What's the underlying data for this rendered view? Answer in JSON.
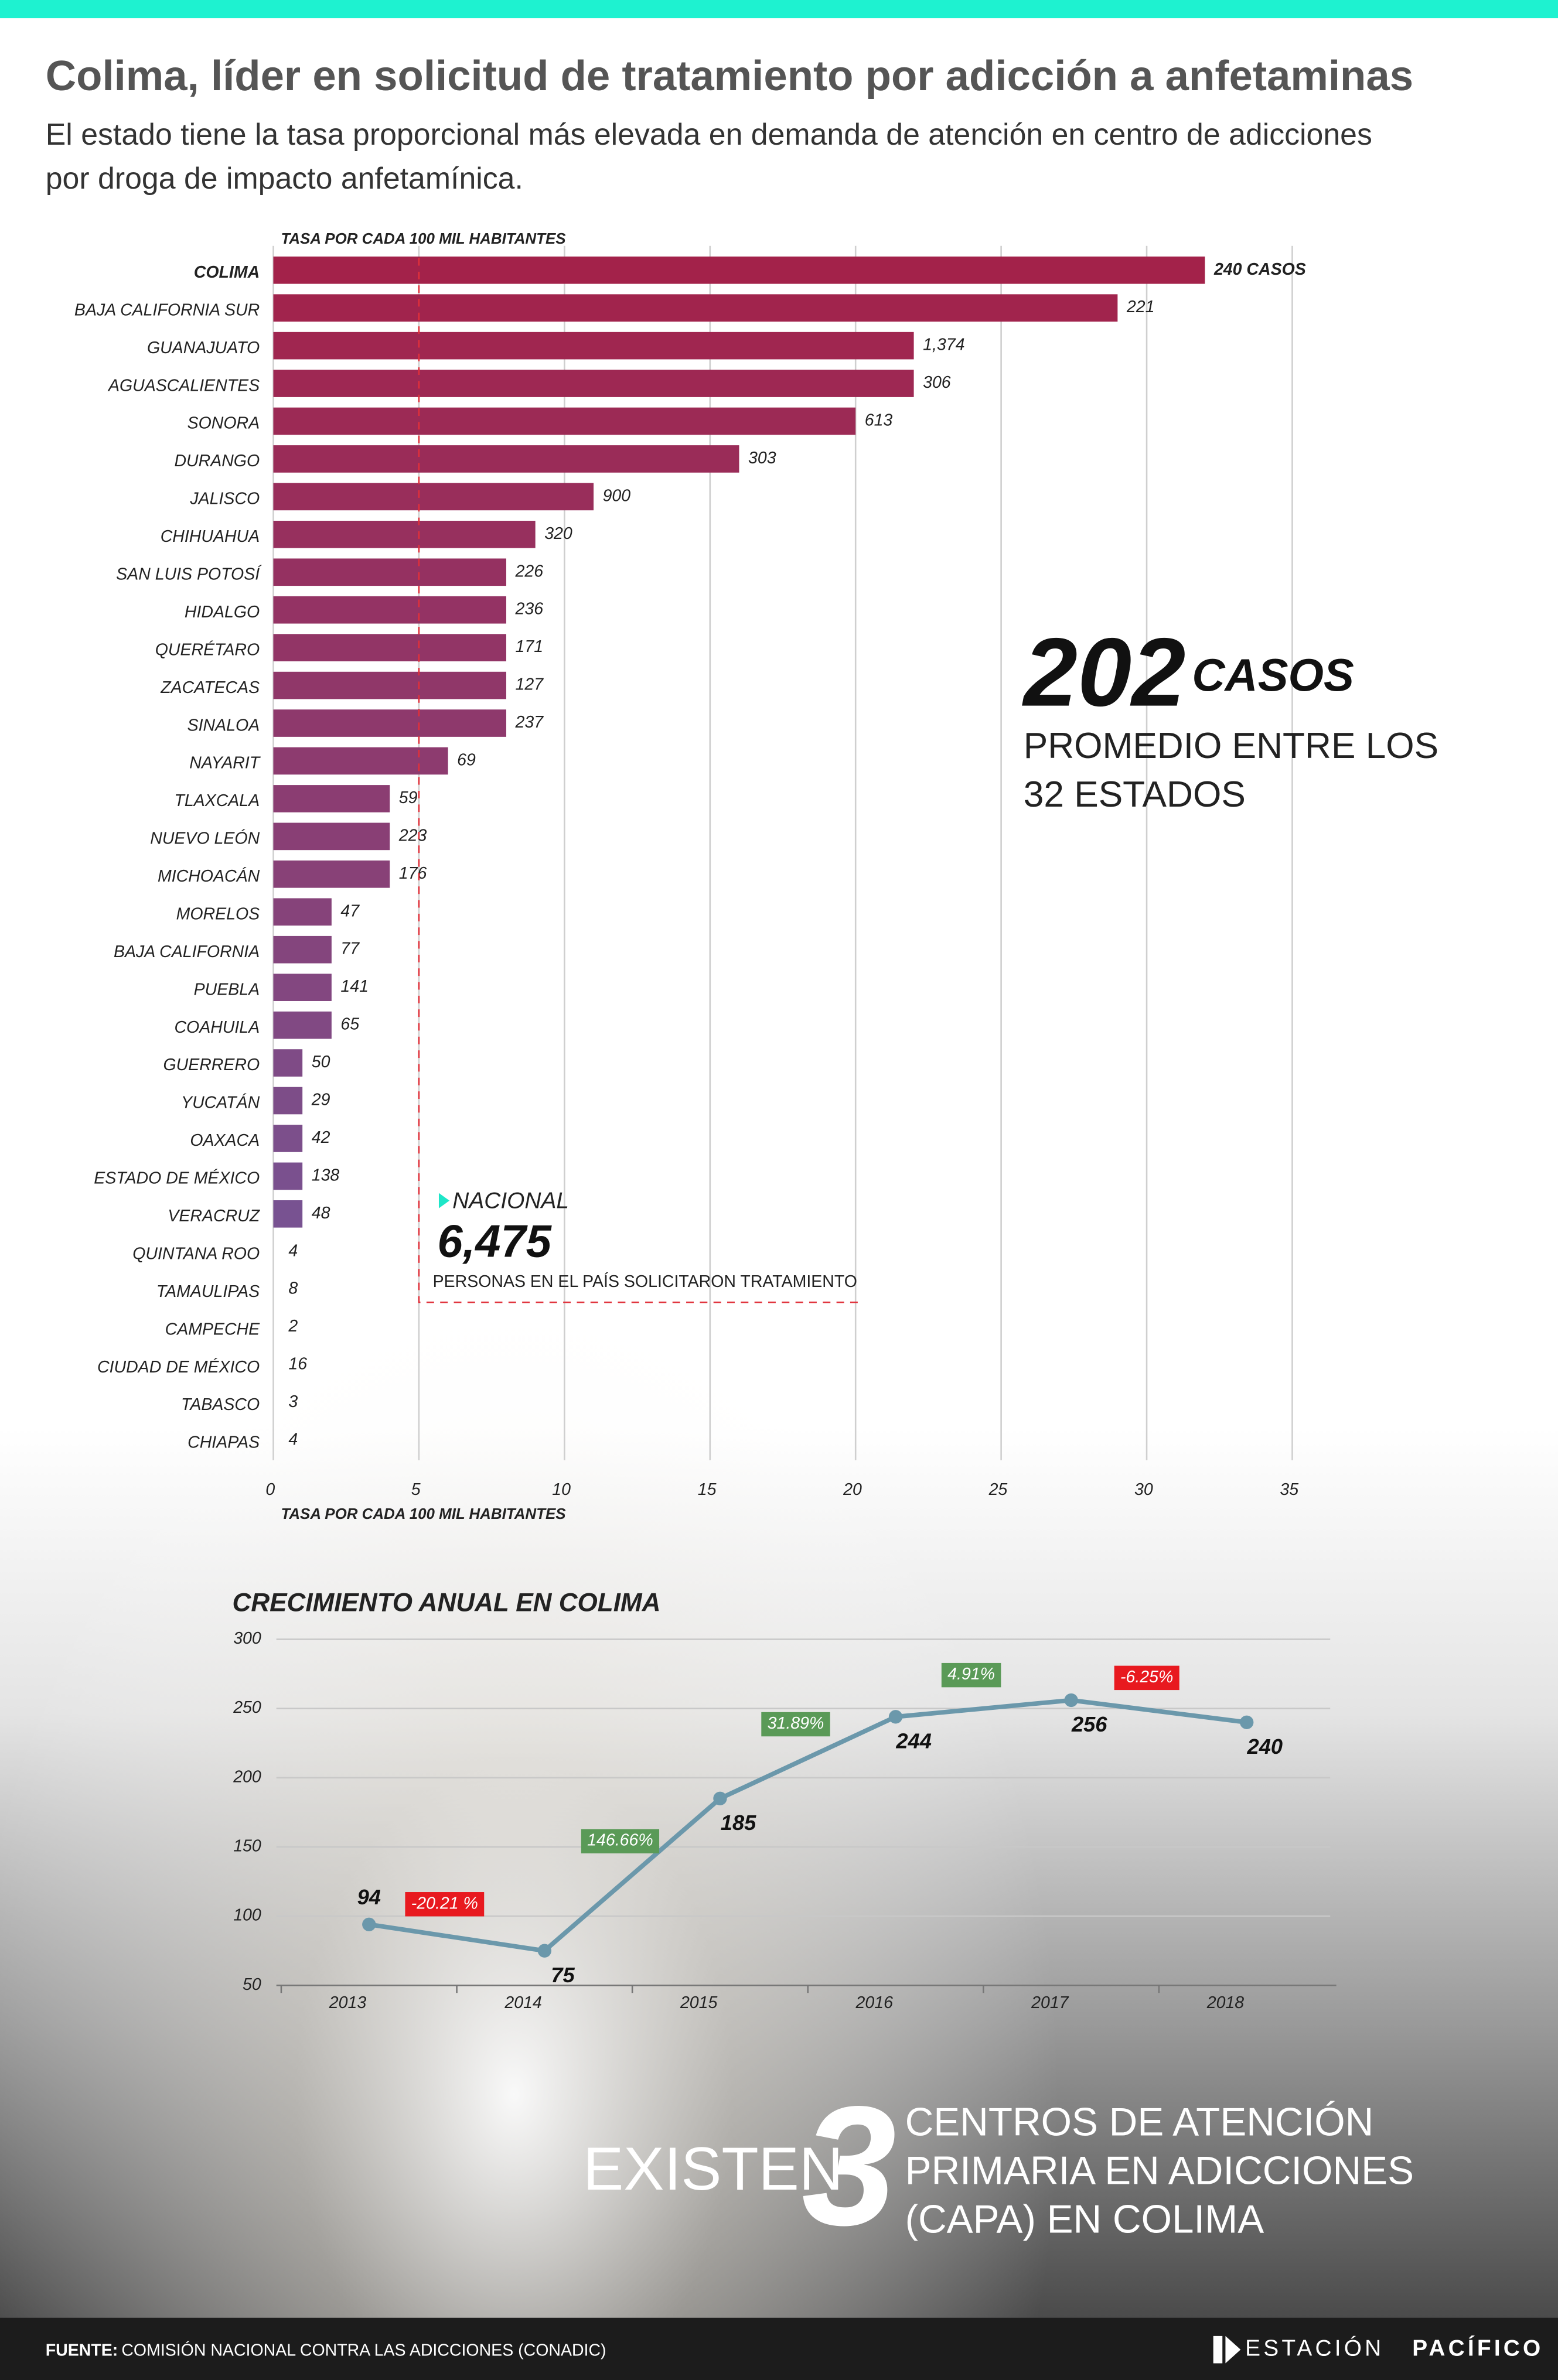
{
  "header": {
    "title": "Colima, líder en solicitud de tratamiento por adicción a anfetaminas",
    "subtitle": [
      "El estado tiene la tasa proporcional más elevada en demanda de atención en centro de adicciones",
      "por droga de impacto  anfetamínica."
    ]
  },
  "chart_data": [
    {
      "type": "hbar",
      "x_label": "TASA POR CADA 100 MIL HABITANTES",
      "categories": [
        "COLIMA",
        "BAJA CALIFORNIA SUR",
        "GUANAJUATO",
        "AGUASCALIENTES",
        "SONORA",
        "DURANGO",
        "JALISCO",
        "CHIHUAHUA",
        "SAN LUIS POTOSÍ",
        "HIDALGO",
        "QUERÉTARO",
        "ZACATECAS",
        "SINALOA",
        "NAYARIT",
        "TLAXCALA",
        "NUEVO LEÓN",
        "MICHOACÁN",
        "MORELOS",
        "BAJA CALIFORNIA",
        "PUEBLA",
        "COAHUILA",
        "GUERRERO",
        "YUCATÁN",
        "OAXACA",
        "ESTADO DE MÉXICO",
        "VERACRUZ",
        "QUINTANA ROO",
        "TAMAULIPAS",
        "CAMPECHE",
        "CIUDAD DE MÉXICO",
        "TABASCO",
        "CHIAPAS"
      ],
      "values": [
        32,
        29,
        22,
        22,
        20,
        16,
        11,
        9,
        8,
        8,
        8,
        8,
        8,
        6,
        4,
        4,
        4,
        2,
        2,
        2,
        2,
        1,
        1,
        1,
        1,
        1,
        0,
        0,
        0,
        0,
        0,
        0
      ],
      "cases": [
        {
          "value": 240,
          "label": "240 CASOS"
        },
        221,
        {
          "value": 1374,
          "label": "1,374"
        },
        306,
        613,
        303,
        900,
        320,
        226,
        236,
        171,
        127,
        237,
        69,
        59,
        223,
        176,
        47,
        77,
        141,
        65,
        50,
        29,
        42,
        138,
        48,
        4,
        8,
        2,
        16,
        3,
        4
      ],
      "color_range": [
        "#a3224a",
        "#6e5ea2"
      ],
      "xlim": [
        0,
        35
      ],
      "xticks": [
        0,
        5,
        10,
        15,
        20,
        25,
        30,
        35
      ],
      "grid": true,
      "reference_line": 5,
      "annotation": {
        "label": "NACIONAL",
        "value": {
          "value": 6475,
          "label": "6,475"
        },
        "text": "PERSONAS EN EL PAÍS SOLICITARON TRATAMIENTO"
      }
    },
    {
      "type": "line",
      "title": "CRECIMIENTO ANUAL EN COLIMA",
      "categories": [
        "2013",
        "2014",
        "2015",
        "2016",
        "2017",
        "2018"
      ],
      "values": [
        94,
        75,
        185,
        244,
        256,
        240
      ],
      "changes": [
        {
          "value": -20.21,
          "label": "-20.21 %"
        },
        {
          "value": 146.66,
          "label": "146.66%"
        },
        {
          "value": 31.89,
          "label": "31.89%"
        },
        {
          "value": 4.91,
          "label": "4.91%"
        },
        {
          "value": -6.25,
          "label": "-6.25%"
        }
      ],
      "color": "#6b98ab",
      "positive_color": "#5a9a57",
      "negative_color": "#e8191f",
      "ylim": [
        50,
        300
      ],
      "yticks": [
        50,
        100,
        150,
        200,
        250,
        300
      ],
      "grid": true
    }
  ],
  "callout_average": {
    "value": 202,
    "unit": "CASOS",
    "lines": [
      "PROMEDIO ENTRE LOS",
      "32 ESTADOS"
    ]
  },
  "callout_centers": {
    "prefix": "EXISTEN",
    "value": 3,
    "lines": [
      "CENTROS DE ATENCIÓN",
      "PRIMARIA EN ADICCIONES",
      "(CAPA) EN COLIMA"
    ]
  },
  "footer": {
    "source_label": "FUENTE:",
    "source": "COMISIÓN NACIONAL CONTRA LAS ADICCIONES (CONADIC)"
  },
  "logo": {
    "name": "ESTACIÓN",
    "name_bold": "PACÍFICO"
  }
}
